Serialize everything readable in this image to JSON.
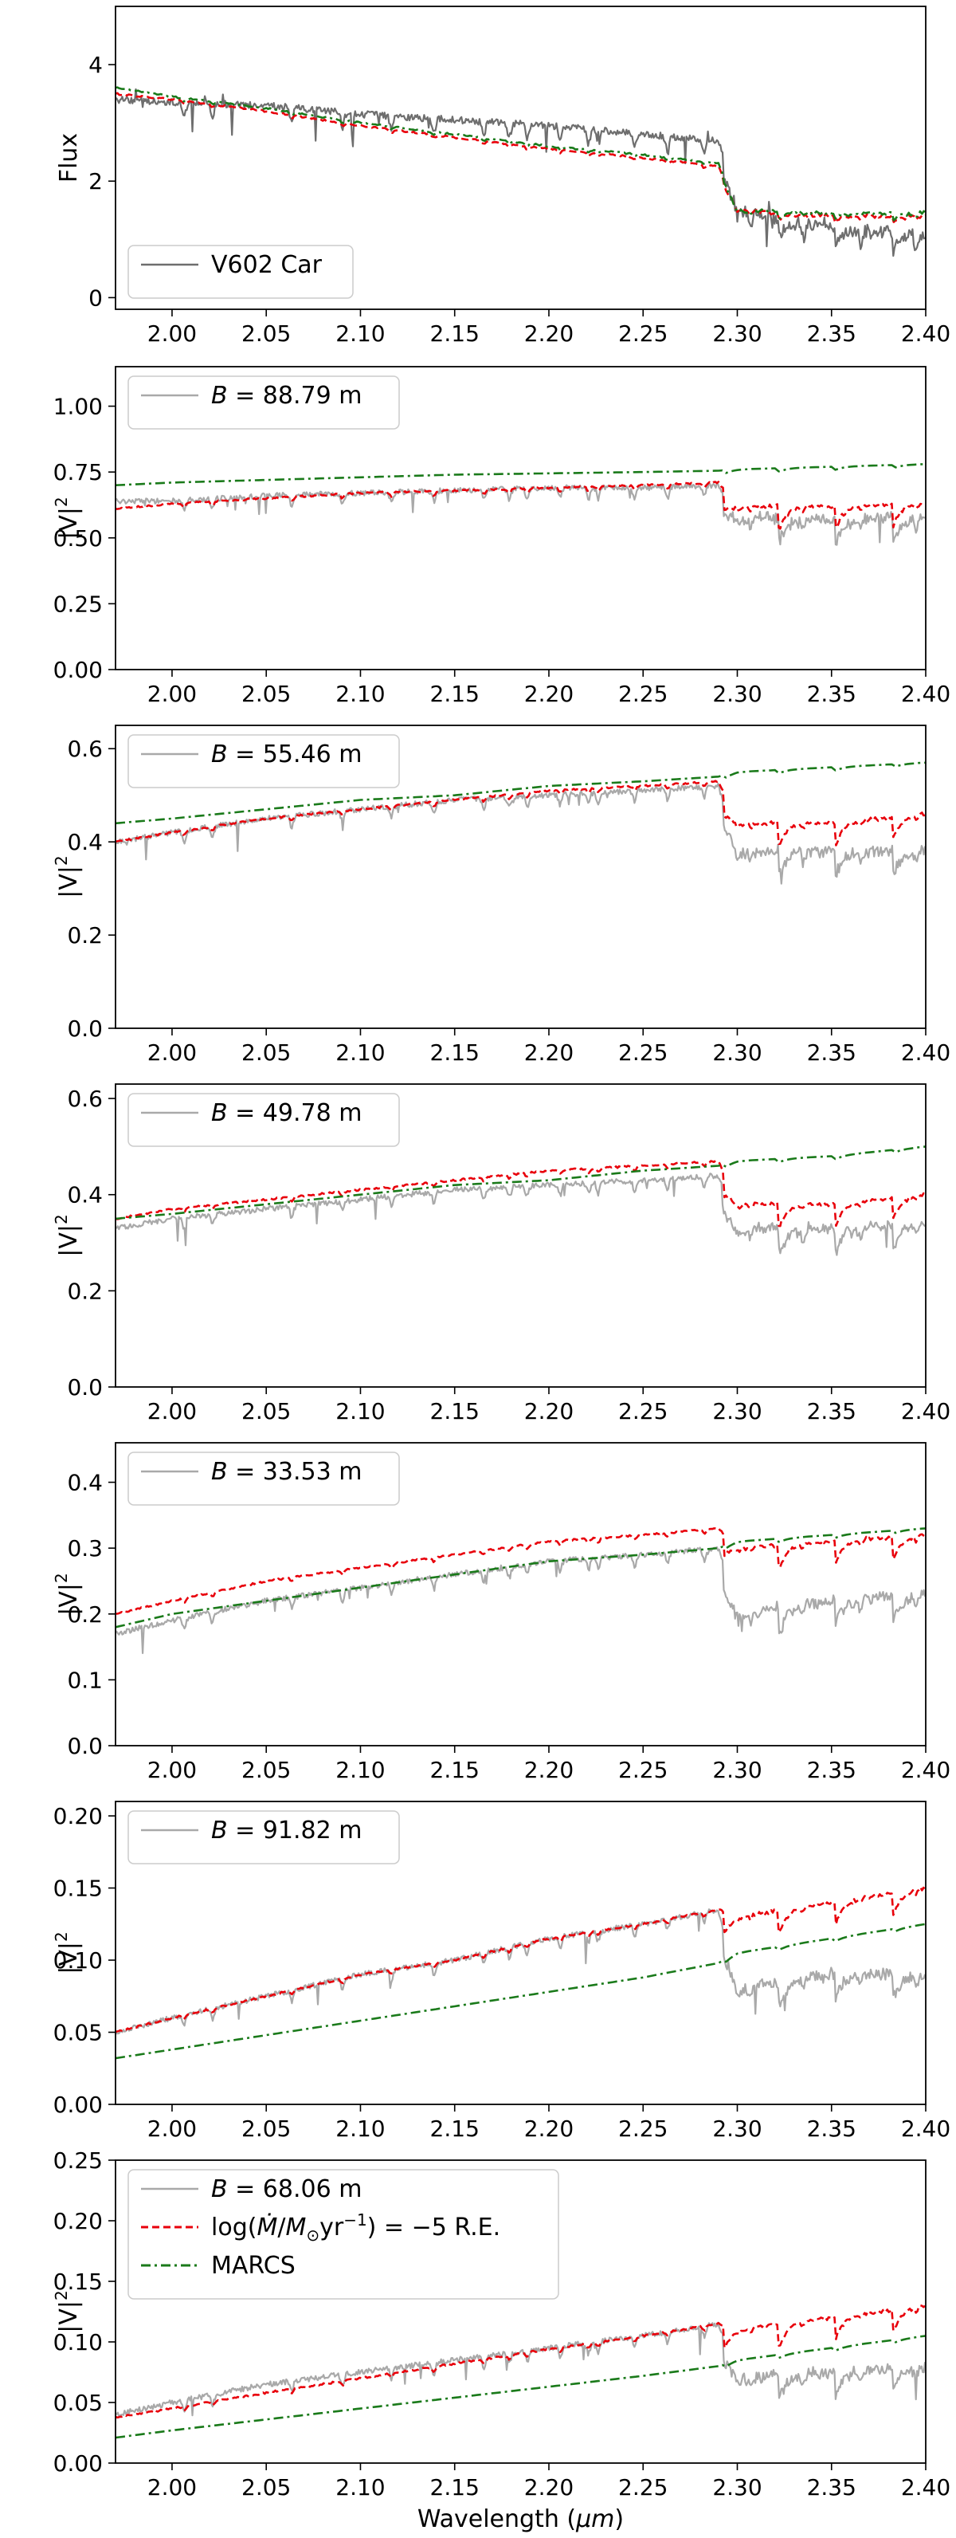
{
  "chart_data": [
    {
      "type": "line",
      "title": "",
      "xlabel": "",
      "ylabel": "Flux",
      "xlim": [
        1.97,
        2.4
      ],
      "ylim": [
        -0.2,
        5.0
      ],
      "xticks": [
        "2.00",
        "2.05",
        "2.10",
        "2.15",
        "2.20",
        "2.25",
        "2.30",
        "2.35",
        "2.40"
      ],
      "xtick_values": [
        2.0,
        2.05,
        2.1,
        2.15,
        2.2,
        2.25,
        2.3,
        2.35,
        2.4
      ],
      "yticks": [
        "0",
        "2",
        "4"
      ],
      "ytick_values": [
        0,
        2,
        4
      ],
      "legend": [
        "V602 Car"
      ],
      "legend_position": "lower-left",
      "series": [
        {
          "name": "V602 Car",
          "style": "gray-solid",
          "color": "#6e6e6e",
          "shape": "observed-flux",
          "x": [
            1.97,
            2.0,
            2.05,
            2.1,
            2.15,
            2.2,
            2.25,
            2.29,
            2.3,
            2.35,
            2.4
          ],
          "values": [
            3.4,
            3.35,
            3.3,
            3.15,
            3.05,
            2.95,
            2.8,
            2.7,
            1.5,
            1.2,
            1.1
          ]
        },
        {
          "name": "log(Mdot/Msun yr^-1) = -5 R.E.",
          "style": "red-dashed",
          "color": "#e8000b",
          "shape": "model-flux",
          "x": [
            1.97,
            2.0,
            2.05,
            2.1,
            2.15,
            2.2,
            2.25,
            2.29,
            2.3,
            2.35,
            2.4
          ],
          "values": [
            3.5,
            3.4,
            3.2,
            2.95,
            2.75,
            2.55,
            2.4,
            2.25,
            1.5,
            1.4,
            1.4
          ]
        },
        {
          "name": "MARCS",
          "style": "green-dashdot",
          "color": "#1a7a1a",
          "shape": "model-flux",
          "x": [
            1.97,
            2.0,
            2.05,
            2.1,
            2.15,
            2.2,
            2.25,
            2.29,
            2.3,
            2.35,
            2.4
          ],
          "values": [
            3.6,
            3.45,
            3.25,
            3.0,
            2.8,
            2.6,
            2.45,
            2.3,
            1.5,
            1.45,
            1.45
          ]
        }
      ]
    },
    {
      "type": "line",
      "xlabel": "",
      "ylabel": "|V|2",
      "ylabel_main": "|V|",
      "ylabel_sup": "2",
      "xlim": [
        1.97,
        2.4
      ],
      "ylim": [
        0.0,
        1.15
      ],
      "xticks": [
        "2.00",
        "2.05",
        "2.10",
        "2.15",
        "2.20",
        "2.25",
        "2.30",
        "2.35",
        "2.40"
      ],
      "xtick_values": [
        2.0,
        2.05,
        2.1,
        2.15,
        2.2,
        2.25,
        2.3,
        2.35,
        2.4
      ],
      "yticks": [
        "0.00",
        "0.25",
        "0.50",
        "0.75",
        "1.00"
      ],
      "ytick_values": [
        0.0,
        0.25,
        0.5,
        0.75,
        1.0
      ],
      "legend": [
        "B = 88.79 m"
      ],
      "legend_var": "B",
      "legend_rest": " = 88.79 m",
      "legend_position": "top-left",
      "series": [
        {
          "name": "B = 88.79 m",
          "style": "gray-solid",
          "color": "#a9a9a9",
          "shape": "observed-vis",
          "x": [
            1.97,
            2.0,
            2.05,
            2.1,
            2.15,
            2.2,
            2.25,
            2.29,
            2.3,
            2.35,
            2.4
          ],
          "values": [
            0.64,
            0.64,
            0.66,
            0.67,
            0.68,
            0.69,
            0.69,
            0.7,
            0.58,
            0.57,
            0.58
          ]
        },
        {
          "name": "log(Mdot/Msun yr^-1) = -5 R.E.",
          "style": "red-dashed",
          "color": "#e8000b",
          "shape": "model-vis",
          "x": [
            1.97,
            2.0,
            2.05,
            2.1,
            2.15,
            2.2,
            2.25,
            2.29,
            2.3,
            2.35,
            2.4
          ],
          "values": [
            0.61,
            0.63,
            0.65,
            0.67,
            0.68,
            0.69,
            0.7,
            0.71,
            0.62,
            0.62,
            0.63
          ]
        },
        {
          "name": "MARCS",
          "style": "green-dashdot",
          "color": "#1a7a1a",
          "shape": "continuum",
          "x": [
            1.97,
            2.0,
            2.05,
            2.1,
            2.15,
            2.2,
            2.25,
            2.29,
            2.3,
            2.35,
            2.4
          ],
          "values": [
            0.7,
            0.71,
            0.72,
            0.73,
            0.74,
            0.745,
            0.75,
            0.755,
            0.76,
            0.77,
            0.78
          ]
        }
      ]
    },
    {
      "type": "line",
      "xlabel": "",
      "ylabel": "|V|2",
      "ylabel_main": "|V|",
      "ylabel_sup": "2",
      "xlim": [
        1.97,
        2.4
      ],
      "ylim": [
        0.0,
        0.65
      ],
      "xticks": [
        "2.00",
        "2.05",
        "2.10",
        "2.15",
        "2.20",
        "2.25",
        "2.30",
        "2.35",
        "2.40"
      ],
      "xtick_values": [
        2.0,
        2.05,
        2.1,
        2.15,
        2.2,
        2.25,
        2.3,
        2.35,
        2.4
      ],
      "yticks": [
        "0.0",
        "0.2",
        "0.4",
        "0.6"
      ],
      "ytick_values": [
        0.0,
        0.2,
        0.4,
        0.6
      ],
      "legend": [
        "B = 55.46 m"
      ],
      "legend_var": "B",
      "legend_rest": " = 55.46 m",
      "legend_position": "top-left",
      "series": [
        {
          "name": "B = 55.46 m",
          "style": "gray-solid",
          "color": "#a9a9a9",
          "shape": "observed-vis",
          "x": [
            1.97,
            2.0,
            2.05,
            2.1,
            2.15,
            2.2,
            2.25,
            2.29,
            2.3,
            2.35,
            2.4
          ],
          "values": [
            0.4,
            0.42,
            0.45,
            0.47,
            0.49,
            0.5,
            0.51,
            0.52,
            0.38,
            0.38,
            0.38
          ]
        },
        {
          "name": "log(Mdot/Msun yr^-1) = -5 R.E.",
          "style": "red-dashed",
          "color": "#e8000b",
          "shape": "model-vis",
          "x": [
            1.97,
            2.0,
            2.05,
            2.1,
            2.15,
            2.2,
            2.25,
            2.29,
            2.3,
            2.35,
            2.4
          ],
          "values": [
            0.4,
            0.42,
            0.45,
            0.47,
            0.49,
            0.51,
            0.52,
            0.53,
            0.44,
            0.44,
            0.46
          ]
        },
        {
          "name": "MARCS",
          "style": "green-dashdot",
          "color": "#1a7a1a",
          "shape": "continuum",
          "x": [
            1.97,
            2.0,
            2.05,
            2.1,
            2.15,
            2.2,
            2.25,
            2.29,
            2.3,
            2.35,
            2.4
          ],
          "values": [
            0.44,
            0.45,
            0.47,
            0.49,
            0.5,
            0.52,
            0.53,
            0.54,
            0.55,
            0.56,
            0.57
          ]
        }
      ]
    },
    {
      "type": "line",
      "xlabel": "",
      "ylabel": "|V|2",
      "ylabel_main": "|V|",
      "ylabel_sup": "2",
      "xlim": [
        1.97,
        2.4
      ],
      "ylim": [
        0.0,
        0.63
      ],
      "xticks": [
        "2.00",
        "2.05",
        "2.10",
        "2.15",
        "2.20",
        "2.25",
        "2.30",
        "2.35",
        "2.40"
      ],
      "xtick_values": [
        2.0,
        2.05,
        2.1,
        2.15,
        2.2,
        2.25,
        2.3,
        2.35,
        2.4
      ],
      "yticks": [
        "0.0",
        "0.2",
        "0.4",
        "0.6"
      ],
      "ytick_values": [
        0.0,
        0.2,
        0.4,
        0.6
      ],
      "legend": [
        "B = 49.78 m"
      ],
      "legend_var": "B",
      "legend_rest": " = 49.78 m",
      "legend_position": "top-left",
      "series": [
        {
          "name": "B = 49.78 m",
          "style": "gray-solid",
          "color": "#a9a9a9",
          "shape": "observed-vis",
          "x": [
            1.97,
            2.0,
            2.05,
            2.1,
            2.15,
            2.2,
            2.25,
            2.29,
            2.3,
            2.35,
            2.4
          ],
          "values": [
            0.33,
            0.35,
            0.37,
            0.39,
            0.41,
            0.42,
            0.43,
            0.44,
            0.33,
            0.33,
            0.34
          ]
        },
        {
          "name": "log(Mdot/Msun yr^-1) = -5 R.E.",
          "style": "red-dashed",
          "color": "#e8000b",
          "shape": "model-vis",
          "x": [
            1.97,
            2.0,
            2.05,
            2.1,
            2.15,
            2.2,
            2.25,
            2.29,
            2.3,
            2.35,
            2.4
          ],
          "values": [
            0.35,
            0.37,
            0.39,
            0.41,
            0.43,
            0.45,
            0.46,
            0.47,
            0.38,
            0.38,
            0.4
          ]
        },
        {
          "name": "MARCS",
          "style": "green-dashdot",
          "color": "#1a7a1a",
          "shape": "continuum",
          "x": [
            1.97,
            2.0,
            2.05,
            2.1,
            2.15,
            2.2,
            2.25,
            2.29,
            2.3,
            2.35,
            2.4
          ],
          "values": [
            0.35,
            0.36,
            0.38,
            0.4,
            0.42,
            0.43,
            0.45,
            0.46,
            0.47,
            0.48,
            0.5
          ]
        }
      ]
    },
    {
      "type": "line",
      "xlabel": "",
      "ylabel": "|V|2",
      "ylabel_main": "|V|",
      "ylabel_sup": "2",
      "xlim": [
        1.97,
        2.4
      ],
      "ylim": [
        0.0,
        0.46
      ],
      "xticks": [
        "2.00",
        "2.05",
        "2.10",
        "2.15",
        "2.20",
        "2.25",
        "2.30",
        "2.35",
        "2.40"
      ],
      "xtick_values": [
        2.0,
        2.05,
        2.1,
        2.15,
        2.2,
        2.25,
        2.3,
        2.35,
        2.4
      ],
      "yticks": [
        "0.0",
        "0.1",
        "0.2",
        "0.3",
        "0.4"
      ],
      "ytick_values": [
        0.0,
        0.1,
        0.2,
        0.3,
        0.4
      ],
      "legend": [
        "B = 33.53 m"
      ],
      "legend_var": "B",
      "legend_rest": " = 33.53 m",
      "legend_position": "top-left",
      "series": [
        {
          "name": "B = 33.53 m",
          "style": "gray-solid",
          "color": "#a9a9a9",
          "shape": "observed-vis",
          "x": [
            1.97,
            2.0,
            2.05,
            2.1,
            2.15,
            2.2,
            2.25,
            2.29,
            2.3,
            2.35,
            2.4
          ],
          "values": [
            0.17,
            0.19,
            0.22,
            0.24,
            0.26,
            0.28,
            0.29,
            0.3,
            0.2,
            0.22,
            0.23
          ]
        },
        {
          "name": "log(Mdot/Msun yr^-1) = -5 R.E.",
          "style": "red-dashed",
          "color": "#e8000b",
          "shape": "model-vis",
          "x": [
            1.97,
            2.0,
            2.05,
            2.1,
            2.15,
            2.2,
            2.25,
            2.29,
            2.3,
            2.35,
            2.4
          ],
          "values": [
            0.2,
            0.22,
            0.25,
            0.27,
            0.29,
            0.31,
            0.32,
            0.33,
            0.3,
            0.31,
            0.32
          ]
        },
        {
          "name": "MARCS",
          "style": "green-dashdot",
          "color": "#1a7a1a",
          "shape": "continuum",
          "x": [
            1.97,
            2.0,
            2.05,
            2.1,
            2.15,
            2.2,
            2.25,
            2.29,
            2.3,
            2.35,
            2.4
          ],
          "values": [
            0.18,
            0.2,
            0.22,
            0.24,
            0.26,
            0.28,
            0.29,
            0.3,
            0.31,
            0.32,
            0.33
          ]
        }
      ]
    },
    {
      "type": "line",
      "xlabel": "",
      "ylabel": "|V|2",
      "ylabel_main": "|V|",
      "ylabel_sup": "2",
      "xlim": [
        1.97,
        2.4
      ],
      "ylim": [
        0.0,
        0.21
      ],
      "xticks": [
        "2.00",
        "2.05",
        "2.10",
        "2.15",
        "2.20",
        "2.25",
        "2.30",
        "2.35",
        "2.40"
      ],
      "xtick_values": [
        2.0,
        2.05,
        2.1,
        2.15,
        2.2,
        2.25,
        2.3,
        2.35,
        2.4
      ],
      "yticks": [
        "0.00",
        "0.05",
        "0.10",
        "0.15",
        "0.20"
      ],
      "ytick_values": [
        0.0,
        0.05,
        0.1,
        0.15,
        0.2
      ],
      "legend": [
        "B = 91.82 m"
      ],
      "legend_var": "B",
      "legend_rest": " = 91.82 m",
      "legend_position": "top-left",
      "series": [
        {
          "name": "B = 91.82 m",
          "style": "gray-solid",
          "color": "#a9a9a9",
          "shape": "observed-vis",
          "x": [
            1.97,
            2.0,
            2.05,
            2.1,
            2.15,
            2.2,
            2.25,
            2.29,
            2.3,
            2.35,
            2.4
          ],
          "values": [
            0.05,
            0.06,
            0.075,
            0.09,
            0.1,
            0.115,
            0.125,
            0.135,
            0.08,
            0.09,
            0.09
          ]
        },
        {
          "name": "log(Mdot/Msun yr^-1) = -5 R.E.",
          "style": "red-dashed",
          "color": "#e8000b",
          "shape": "model-vis",
          "x": [
            1.97,
            2.0,
            2.05,
            2.1,
            2.15,
            2.2,
            2.25,
            2.29,
            2.3,
            2.35,
            2.4
          ],
          "values": [
            0.05,
            0.06,
            0.075,
            0.09,
            0.1,
            0.115,
            0.125,
            0.135,
            0.13,
            0.14,
            0.15
          ]
        },
        {
          "name": "MARCS",
          "style": "green-dashdot",
          "color": "#1a7a1a",
          "shape": "continuum",
          "x": [
            1.97,
            2.0,
            2.05,
            2.1,
            2.15,
            2.2,
            2.25,
            2.29,
            2.3,
            2.35,
            2.4
          ],
          "values": [
            0.032,
            0.038,
            0.048,
            0.058,
            0.068,
            0.078,
            0.088,
            0.098,
            0.105,
            0.115,
            0.125
          ]
        }
      ]
    },
    {
      "type": "line",
      "xlabel": "Wavelength (μm)",
      "xlabel_pre": "Wavelength (",
      "xlabel_var": "μm",
      "xlabel_post": ")",
      "ylabel": "|V|2",
      "ylabel_main": "|V|",
      "ylabel_sup": "2",
      "xlim": [
        1.97,
        2.4
      ],
      "ylim": [
        0.0,
        0.25
      ],
      "xticks": [
        "2.00",
        "2.05",
        "2.10",
        "2.15",
        "2.20",
        "2.25",
        "2.30",
        "2.35",
        "2.40"
      ],
      "xtick_values": [
        2.0,
        2.05,
        2.1,
        2.15,
        2.2,
        2.25,
        2.3,
        2.35,
        2.4
      ],
      "yticks": [
        "0.00",
        "0.05",
        "0.10",
        "0.15",
        "0.20",
        "0.25"
      ],
      "ytick_values": [
        0.0,
        0.05,
        0.1,
        0.15,
        0.2,
        0.25
      ],
      "legend": [
        "B = 68.06 m",
        "log(Ṁ/M⊙yr⁻¹) = −5 R.E.",
        "MARCS"
      ],
      "legend_var": "B",
      "legend_rest": " = 68.06 m",
      "legend_model_pre": "log(",
      "legend_model_mdot": "Ṁ",
      "legend_model_slash": "/",
      "legend_model_m": "M",
      "legend_model_sun": "⊙",
      "legend_model_yr": "yr",
      "legend_model_exp": "−1",
      "legend_model_post": ") = −5 R.E.",
      "legend_marcs": "MARCS",
      "legend_position": "top-left",
      "series": [
        {
          "name": "B = 68.06 m",
          "style": "gray-solid",
          "color": "#a9a9a9",
          "shape": "observed-vis",
          "x": [
            1.97,
            2.0,
            2.05,
            2.1,
            2.15,
            2.2,
            2.25,
            2.29,
            2.3,
            2.35,
            2.4
          ],
          "values": [
            0.04,
            0.05,
            0.065,
            0.075,
            0.085,
            0.095,
            0.105,
            0.115,
            0.07,
            0.075,
            0.08
          ]
        },
        {
          "name": "log(Mdot/Msun yr^-1) = -5 R.E.",
          "style": "red-dashed",
          "color": "#e8000b",
          "shape": "model-vis",
          "x": [
            1.97,
            2.0,
            2.05,
            2.1,
            2.15,
            2.2,
            2.25,
            2.29,
            2.3,
            2.35,
            2.4
          ],
          "values": [
            0.038,
            0.045,
            0.058,
            0.07,
            0.082,
            0.094,
            0.105,
            0.115,
            0.11,
            0.12,
            0.13
          ]
        },
        {
          "name": "MARCS",
          "style": "green-dashdot",
          "color": "#1a7a1a",
          "shape": "continuum",
          "x": [
            1.97,
            2.0,
            2.05,
            2.1,
            2.15,
            2.2,
            2.25,
            2.29,
            2.3,
            2.35,
            2.4
          ],
          "values": [
            0.021,
            0.027,
            0.036,
            0.045,
            0.054,
            0.063,
            0.072,
            0.08,
            0.085,
            0.095,
            0.105
          ]
        }
      ]
    }
  ]
}
